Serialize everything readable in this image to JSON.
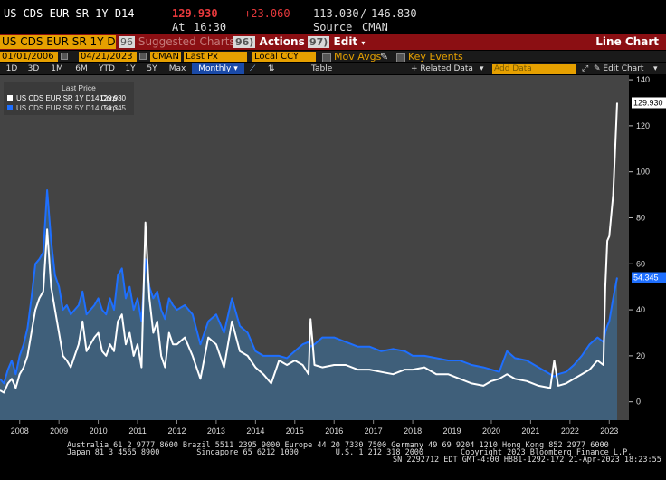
{
  "header": {
    "ticker": "US CDS EUR SR 1Y D14",
    "last_value": "129.930",
    "change": "+23.060",
    "range_low": "113.030",
    "range_sep": "/",
    "range_high": "146.830",
    "at_label": "At",
    "at_time": "16:30",
    "source_label": "Source",
    "source_value": "CMAN"
  },
  "toolbar": {
    "security_field": "US CDS EUR SR 1Y D",
    "suggested_num": "96",
    "suggested_label": "Suggested Charts",
    "actions_num": "96)",
    "actions_label": "Actions",
    "edit_num": "97)",
    "edit_label": "Edit",
    "chart_type": "Line Chart",
    "start_date": "01/01/2006",
    "end_date": "04/21/2023",
    "source_field": "CMAN",
    "field_field": "Last Px",
    "currency_field": "Local CCY",
    "mov_avgs_label": "Mov Avgs",
    "key_events_label": "Key Events",
    "periods": [
      "1D",
      "3D",
      "1M",
      "6M",
      "YTD",
      "1Y",
      "5Y",
      "Max"
    ],
    "frequency": "Monthly",
    "table_label": "Table",
    "related_data_label": "Related Data",
    "add_data_placeholder": "Add Data",
    "edit_chart_label": "Edit Chart"
  },
  "colors": {
    "series_1y": "#ffffff",
    "series_5y": "#1e6fff",
    "area_fill": "#3f5f7a",
    "plot_bg": "#444444",
    "accent_orange": "#e6a000",
    "header_red": "#8b0f13",
    "change_red": "#e8393c"
  },
  "chart_data": {
    "type": "line",
    "title": "",
    "legend_title": "Last Price",
    "xlabel": "",
    "ylabel": "",
    "ylim": [
      -8,
      142
    ],
    "yticks": [
      0,
      20,
      40,
      60,
      80,
      100,
      120,
      140
    ],
    "ytick_labels": [
      "0",
      "20",
      "40",
      "60",
      "80",
      "100",
      "120",
      "140"
    ],
    "x_labels": [
      "2008",
      "2009",
      "2010",
      "2011",
      "2012",
      "2013",
      "2014",
      "2015",
      "2016",
      "2017",
      "2018",
      "2019",
      "2020",
      "2021",
      "2022",
      "2023"
    ],
    "x_label_values": [
      2008.0,
      2009.0,
      2010.0,
      2011.0,
      2012.0,
      2013.0,
      2014.0,
      2015.0,
      2016.0,
      2017.0,
      2018.0,
      2019.0,
      2020.0,
      2021.0,
      2022.0,
      2023.0
    ],
    "xlim": [
      2007.5,
      2023.5
    ],
    "grid": false,
    "legend_position": "top-left",
    "series": [
      {
        "name": "US CDS EUR SR 1Y D14 Corp",
        "last_label": "129.930",
        "x": [
          2007.5,
          2007.6,
          2007.7,
          2007.8,
          2007.9,
          2008.0,
          2008.1,
          2008.2,
          2008.3,
          2008.4,
          2008.5,
          2008.6,
          2008.7,
          2008.8,
          2008.9,
          2009.0,
          2009.1,
          2009.2,
          2009.3,
          2009.4,
          2009.5,
          2009.6,
          2009.7,
          2009.8,
          2009.9,
          2010.0,
          2010.1,
          2010.2,
          2010.3,
          2010.4,
          2010.5,
          2010.6,
          2010.7,
          2010.8,
          2010.9,
          2011.0,
          2011.1,
          2011.2,
          2011.3,
          2011.4,
          2011.5,
          2011.6,
          2011.7,
          2011.8,
          2011.9,
          2012.0,
          2012.2,
          2012.4,
          2012.6,
          2012.8,
          2013.0,
          2013.2,
          2013.4,
          2013.6,
          2013.8,
          2014.0,
          2014.2,
          2014.4,
          2014.6,
          2014.8,
          2015.0,
          2015.2,
          2015.35,
          2015.4,
          2015.5,
          2015.7,
          2016.0,
          2016.3,
          2016.6,
          2016.9,
          2017.2,
          2017.5,
          2017.8,
          2018.0,
          2018.3,
          2018.6,
          2018.9,
          2019.2,
          2019.5,
          2019.8,
          2020.0,
          2020.2,
          2020.4,
          2020.6,
          2020.9,
          2021.2,
          2021.5,
          2021.6,
          2021.7,
          2021.9,
          2022.1,
          2022.3,
          2022.5,
          2022.7,
          2022.85,
          2022.9,
          2022.95,
          2023.0,
          2023.1,
          2023.2
        ],
        "values": [
          5,
          4,
          8,
          10,
          6,
          12,
          15,
          20,
          30,
          40,
          45,
          48,
          75,
          50,
          40,
          30,
          20,
          18,
          15,
          20,
          25,
          35,
          22,
          25,
          28,
          30,
          22,
          20,
          25,
          22,
          35,
          38,
          25,
          30,
          20,
          25,
          15,
          78,
          45,
          30,
          35,
          20,
          15,
          30,
          25,
          25,
          28,
          20,
          10,
          28,
          25,
          15,
          35,
          22,
          20,
          15,
          12,
          8,
          18,
          16,
          18,
          16,
          12,
          36,
          16,
          15,
          16,
          16,
          14,
          14,
          13,
          12,
          14,
          14,
          15,
          12,
          12,
          10,
          8,
          7,
          9,
          10,
          12,
          10,
          9,
          7,
          6,
          18,
          7,
          8,
          10,
          12,
          14,
          18,
          16,
          50,
          70,
          72,
          90,
          130
        ]
      },
      {
        "name": "US CDS EUR SR 5Y D14 Corp",
        "last_label": "54.345",
        "x": [
          2007.5,
          2007.6,
          2007.7,
          2007.8,
          2007.9,
          2008.0,
          2008.1,
          2008.2,
          2008.3,
          2008.4,
          2008.5,
          2008.6,
          2008.7,
          2008.8,
          2008.9,
          2009.0,
          2009.1,
          2009.2,
          2009.3,
          2009.4,
          2009.5,
          2009.6,
          2009.7,
          2009.8,
          2009.9,
          2010.0,
          2010.1,
          2010.2,
          2010.3,
          2010.4,
          2010.5,
          2010.6,
          2010.7,
          2010.8,
          2010.9,
          2011.0,
          2011.1,
          2011.2,
          2011.3,
          2011.4,
          2011.5,
          2011.6,
          2011.7,
          2011.8,
          2011.9,
          2012.0,
          2012.2,
          2012.4,
          2012.6,
          2012.8,
          2013.0,
          2013.2,
          2013.4,
          2013.6,
          2013.8,
          2014.0,
          2014.2,
          2014.4,
          2014.6,
          2014.8,
          2015.0,
          2015.2,
          2015.35,
          2015.4,
          2015.5,
          2015.7,
          2016.0,
          2016.3,
          2016.6,
          2016.9,
          2017.2,
          2017.5,
          2017.8,
          2018.0,
          2018.3,
          2018.6,
          2018.9,
          2019.2,
          2019.5,
          2019.8,
          2020.0,
          2020.2,
          2020.4,
          2020.6,
          2020.9,
          2021.2,
          2021.5,
          2021.6,
          2021.7,
          2021.9,
          2022.1,
          2022.3,
          2022.5,
          2022.7,
          2022.85,
          2022.9,
          2022.95,
          2023.0,
          2023.1,
          2023.2
        ],
        "values": [
          10,
          8,
          14,
          18,
          12,
          20,
          25,
          32,
          45,
          60,
          62,
          65,
          92,
          70,
          55,
          50,
          40,
          42,
          38,
          40,
          42,
          48,
          38,
          40,
          42,
          45,
          40,
          38,
          45,
          40,
          55,
          58,
          45,
          50,
          40,
          45,
          35,
          62,
          50,
          45,
          48,
          40,
          36,
          45,
          42,
          40,
          42,
          38,
          25,
          35,
          38,
          30,
          45,
          33,
          30,
          22,
          20,
          20,
          20,
          19,
          22,
          25,
          26,
          24,
          25,
          28,
          28,
          26,
          24,
          24,
          22,
          23,
          22,
          20,
          20,
          19,
          18,
          18,
          16,
          15,
          14,
          13,
          22,
          19,
          18,
          15,
          12,
          11,
          12,
          13,
          16,
          20,
          25,
          28,
          26,
          30,
          33,
          35,
          45,
          54
        ]
      }
    ]
  },
  "footer": {
    "line1": "Australia 61 2 9777 8600 Brazil 5511 2395 9000 Europe 44 20 7330 7500 Germany 49 69 9204 1210 Hong Kong 852 2977 6000",
    "line2": "Japan 81 3 4565 8900        Singapore 65 6212 1000        U.S. 1 212 318 2000        Copyright 2023 Bloomberg Finance L.P.",
    "line3": "SN 2292712 EDT  GMT-4:00 H881-1292-172 21-Apr-2023 18:23:55"
  }
}
